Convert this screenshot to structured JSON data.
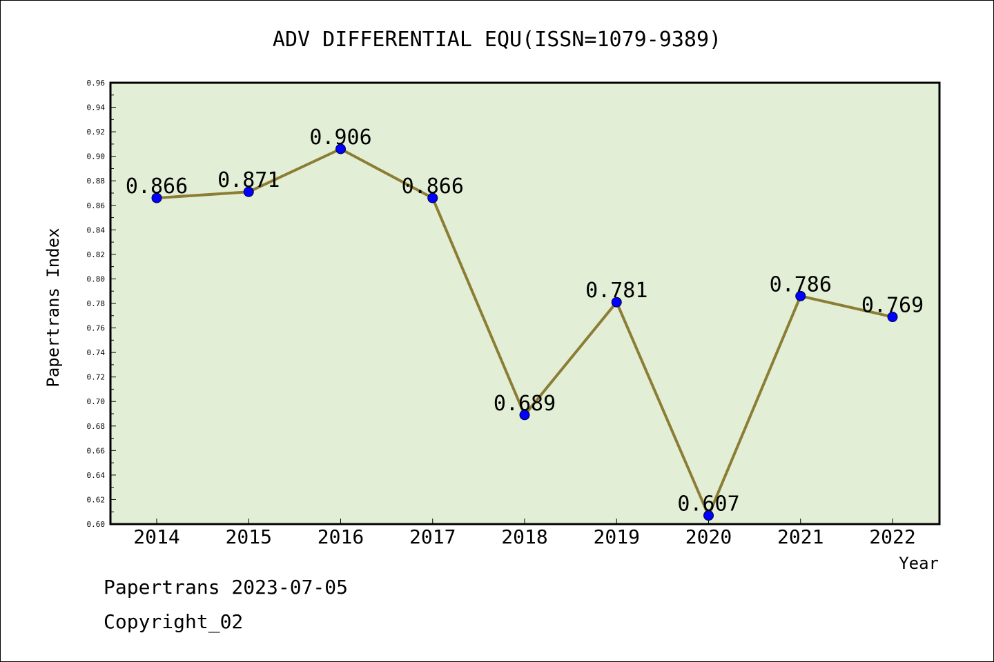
{
  "chart_data": {
    "type": "line",
    "title": "ADV DIFFERENTIAL EQU(ISSN=1079-9389)",
    "xlabel": "Year",
    "ylabel": "Papertrans Index",
    "categories": [
      "2014",
      "2015",
      "2016",
      "2017",
      "2018",
      "2019",
      "2020",
      "2021",
      "2022"
    ],
    "series": [
      {
        "values": [
          0.866,
          0.871,
          0.906,
          0.866,
          0.689,
          0.781,
          0.607,
          0.786,
          0.769
        ],
        "labels": [
          "0.866",
          "0.871",
          "0.906",
          "0.866",
          "0.689",
          "0.781",
          "0.607",
          "0.786",
          "0.769"
        ]
      }
    ],
    "ylim": [
      0.6,
      0.96
    ],
    "yticks": [
      "0.60",
      "0.62",
      "0.64",
      "0.66",
      "0.68",
      "0.70",
      "0.72",
      "0.74",
      "0.76",
      "0.78",
      "0.80",
      "0.82",
      "0.84",
      "0.86",
      "0.88",
      "0.90",
      "0.92",
      "0.94",
      "0.96"
    ],
    "grid": false,
    "colors": {
      "plot_background": "#e2efd6",
      "line": "#8c7d35",
      "marker": "#0000ff"
    }
  },
  "footer": {
    "stamp": "Papertrans 2023-07-05",
    "copyright": "Copyright_02"
  }
}
